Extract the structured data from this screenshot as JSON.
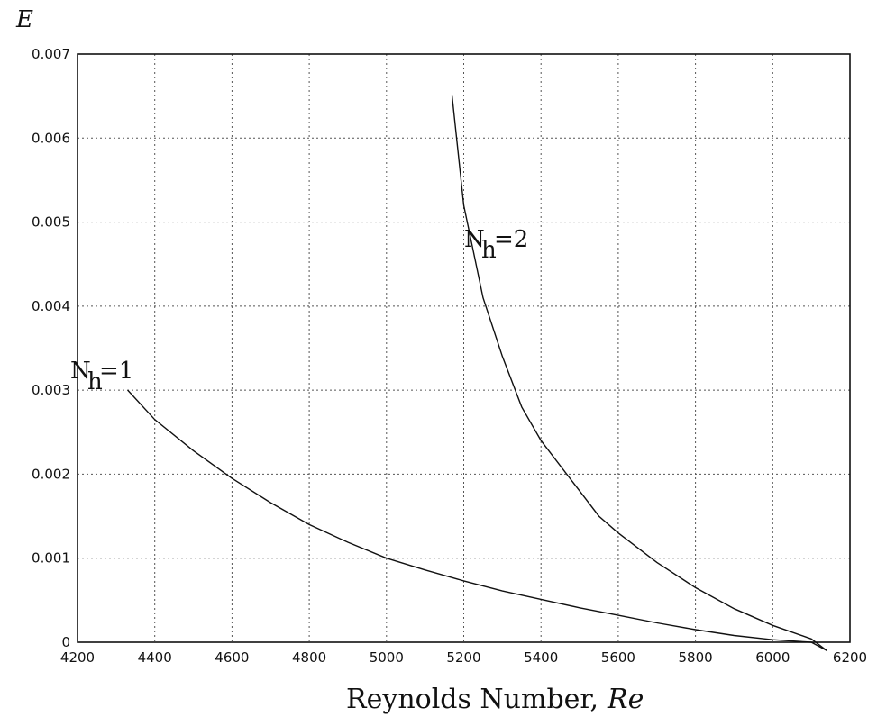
{
  "chart_data": {
    "type": "line",
    "title": "",
    "ylabel": "E",
    "xlabel_main": "Reynolds Number,",
    "xlabel_var": "Re",
    "xlim": [
      4200,
      6200
    ],
    "ylim": [
      0,
      0.007
    ],
    "grid": true,
    "x_ticks": [
      "4200",
      "4400",
      "4600",
      "4800",
      "5000",
      "5200",
      "5400",
      "5600",
      "5800",
      "6000",
      "6200"
    ],
    "y_ticks": [
      "0",
      "0.001",
      "0.002",
      "0.003",
      "0.004",
      "0.005",
      "0.006",
      "0.007"
    ],
    "series": [
      {
        "name": "N_h=1",
        "label_main": "N",
        "label_sub": "h",
        "label_tail": "=1",
        "x": [
          4330,
          4400,
          4500,
          4600,
          4700,
          4800,
          4900,
          5000,
          5100,
          5200,
          5300,
          5400,
          5500,
          5600,
          5700,
          5800,
          5900,
          6000,
          6100,
          6140
        ],
        "y": [
          0.003,
          0.00265,
          0.00228,
          0.00195,
          0.00166,
          0.0014,
          0.00119,
          0.001,
          0.00086,
          0.00073,
          0.00061,
          0.00051,
          0.00041,
          0.00032,
          0.00023,
          0.00015,
          8e-05,
          3e-05,
          0.0,
          -0.0001
        ]
      },
      {
        "name": "N_h=2",
        "label_main": "N",
        "label_sub": "h",
        "label_tail": "=2",
        "x": [
          5170,
          5200,
          5250,
          5300,
          5350,
          5400,
          5450,
          5500,
          5550,
          5600,
          5700,
          5800,
          5900,
          6000,
          6100,
          6140
        ],
        "y": [
          0.0065,
          0.0052,
          0.0041,
          0.0034,
          0.0028,
          0.0024,
          0.0021,
          0.0018,
          0.0015,
          0.0013,
          0.00095,
          0.00065,
          0.0004,
          0.0002,
          4e-05,
          -0.0001
        ]
      }
    ]
  }
}
